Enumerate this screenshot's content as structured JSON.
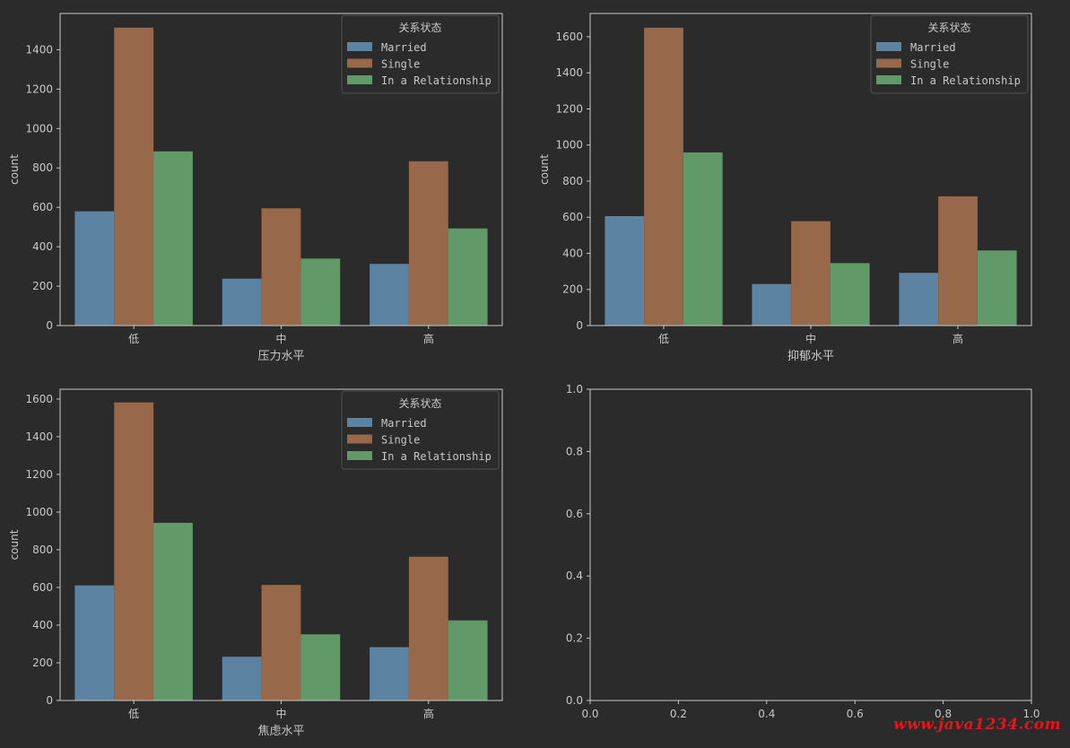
{
  "figure": {
    "background": "#2b2b2b",
    "axis_color": "#c8c8c8",
    "colors": {
      "Married": "#5d83a3",
      "Single": "#97694a",
      "In a Relationship": "#629968"
    }
  },
  "chart_data": [
    {
      "type": "bar",
      "title": "",
      "xlabel": "压力水平",
      "ylabel": "count",
      "categories": [
        "低",
        "中",
        "高"
      ],
      "ylim": [
        0,
        1584
      ],
      "yticks": [
        0,
        200,
        400,
        600,
        800,
        1000,
        1200,
        1400
      ],
      "legend": {
        "title": "关系状态",
        "placement": "top-right"
      },
      "series": [
        {
          "name": "Married",
          "values": [
            580,
            238,
            313
          ]
        },
        {
          "name": "Single",
          "values": [
            1512,
            595,
            834
          ]
        },
        {
          "name": "In a Relationship",
          "values": [
            884,
            340,
            493
          ]
        }
      ]
    },
    {
      "type": "bar",
      "title": "",
      "xlabel": "抑郁水平",
      "ylabel": "count",
      "categories": [
        "低",
        "中",
        "高"
      ],
      "ylim": [
        0,
        1729
      ],
      "yticks": [
        0,
        200,
        400,
        600,
        800,
        1000,
        1200,
        1400,
        1600
      ],
      "legend": {
        "title": "关系状态",
        "placement": "top-right"
      },
      "series": [
        {
          "name": "Married",
          "values": [
            606,
            230,
            292
          ]
        },
        {
          "name": "Single",
          "values": [
            1650,
            578,
            716
          ]
        },
        {
          "name": "In a Relationship",
          "values": [
            959,
            346,
            416
          ]
        }
      ]
    },
    {
      "type": "bar",
      "title": "",
      "xlabel": "焦虑水平",
      "ylabel": "count",
      "categories": [
        "低",
        "中",
        "高"
      ],
      "ylim": [
        0,
        1652
      ],
      "yticks": [
        0,
        200,
        400,
        600,
        800,
        1000,
        1200,
        1400,
        1600
      ],
      "legend": {
        "title": "关系状态",
        "placement": "top-right"
      },
      "series": [
        {
          "name": "Married",
          "values": [
            611,
            232,
            283
          ]
        },
        {
          "name": "Single",
          "values": [
            1582,
            613,
            763
          ]
        },
        {
          "name": "In a Relationship",
          "values": [
            943,
            351,
            425
          ]
        }
      ]
    },
    {
      "type": "empty",
      "title": "",
      "xlabel": "",
      "ylabel": "",
      "xlim": [
        0,
        1
      ],
      "ylim": [
        0,
        1
      ],
      "xticks": [
        "0.0",
        "0.2",
        "0.4",
        "0.6",
        "0.8",
        "1.0"
      ],
      "yticks": [
        "0.0",
        "0.2",
        "0.4",
        "0.6",
        "0.8",
        "1.0"
      ]
    }
  ],
  "watermark": "www.java1234.com"
}
